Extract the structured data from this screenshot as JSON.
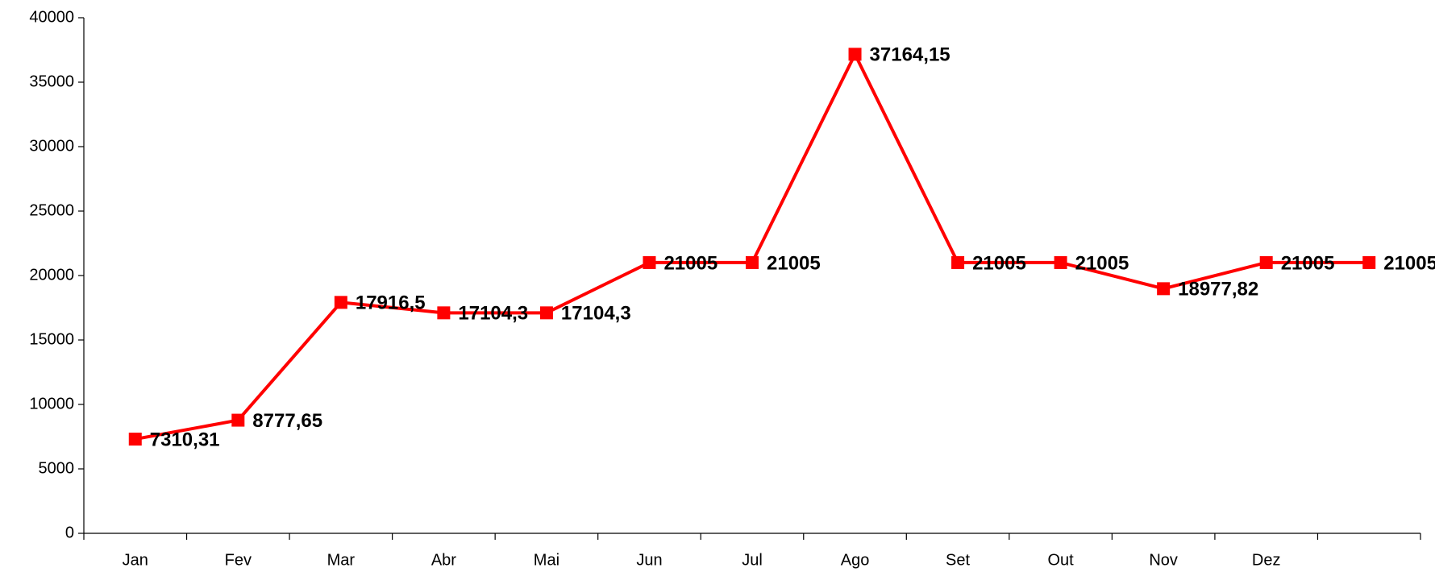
{
  "chart_data": {
    "type": "line",
    "categories": [
      "Jan",
      "Fev",
      "Mar",
      "Abr",
      "Mai",
      "Jun",
      "Jul",
      "Ago",
      "Set",
      "Out",
      "Nov",
      "Dez",
      null
    ],
    "series": [
      {
        "name": null,
        "color": "#ff0000",
        "values": [
          7310.31,
          8777.65,
          17916.5,
          17104.3,
          17104.3,
          21005,
          21005,
          37164.15,
          21005,
          21005,
          18977.82,
          21005,
          21005
        ],
        "value_labels": [
          "7310,31",
          "8777,65",
          "17916,5",
          "17104,3",
          "17104,3",
          "21005",
          "21005",
          "37164,15",
          "21005",
          "21005",
          "18977,82",
          "21005",
          "21005"
        ]
      }
    ],
    "ylim": [
      0,
      40000
    ],
    "yticks": [
      0,
      5000,
      10000,
      15000,
      20000,
      25000,
      30000,
      35000,
      40000
    ],
    "grid": false
  }
}
